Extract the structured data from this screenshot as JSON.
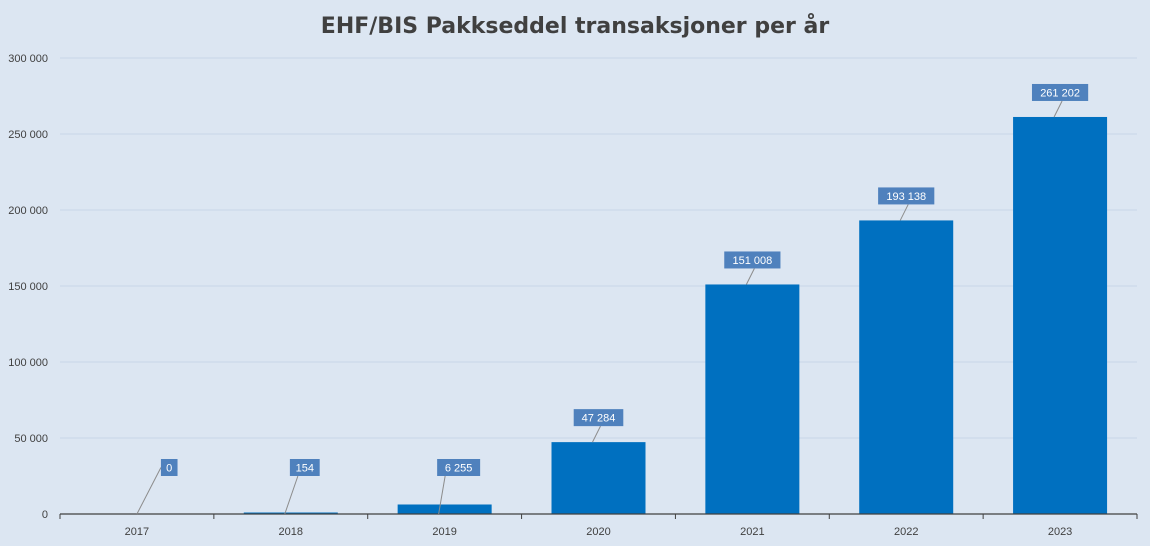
{
  "chart_data": {
    "type": "bar",
    "title": "EHF/BIS Pakkseddel transaksjoner per år",
    "xlabel": "",
    "ylabel": "",
    "categories": [
      "2017",
      "2018",
      "2019",
      "2020",
      "2021",
      "2022",
      "2023"
    ],
    "values": [
      0,
      154,
      6255,
      47284,
      151008,
      193138,
      261202
    ],
    "data_labels": [
      "0",
      "154",
      "6 255",
      "47 284",
      "151 008",
      "193 138",
      "261 202"
    ],
    "ylim": [
      0,
      300000
    ],
    "y_ticks": [
      0,
      50000,
      100000,
      150000,
      200000,
      250000,
      300000
    ],
    "y_tick_labels": [
      "0",
      "50 000",
      "100 000",
      "150 000",
      "200 000",
      "250 000",
      "300 000"
    ],
    "grid": true,
    "legend": "none",
    "colors": {
      "bar": "#0070c0",
      "label_box": "#4f81bd",
      "background": "#dce6f2",
      "grid": "#c9d6e8",
      "axis": "#404040"
    }
  }
}
